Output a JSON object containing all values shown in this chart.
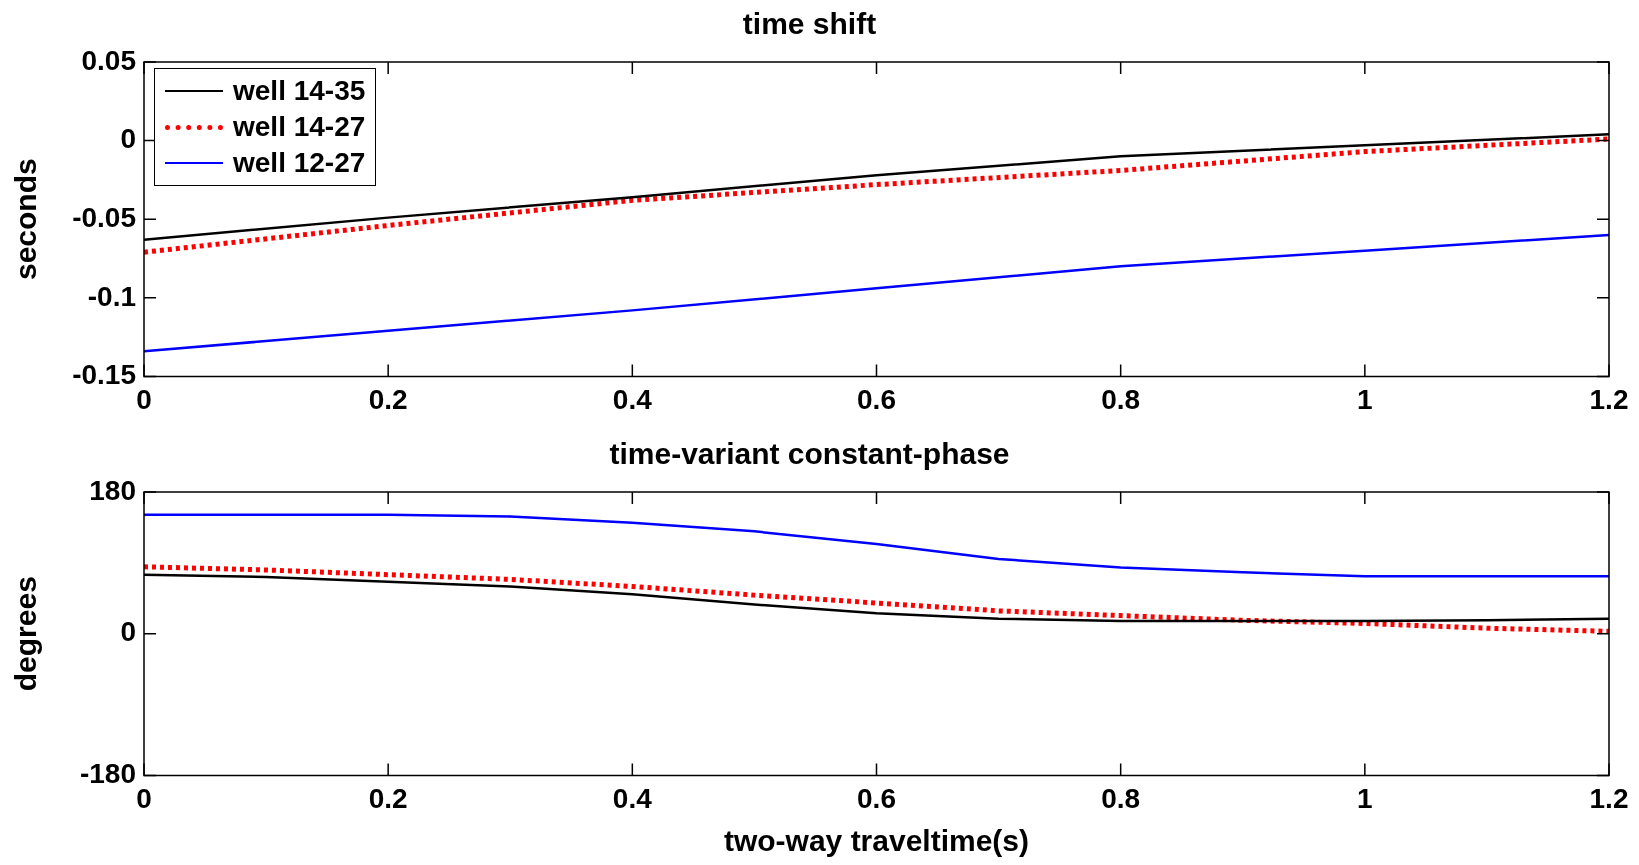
{
  "chart_data": [
    {
      "type": "line",
      "title": "time shift",
      "ylabel": "seconds",
      "x": [
        0,
        0.2,
        0.4,
        0.6,
        0.8,
        1.0,
        1.2
      ],
      "xlim": [
        0,
        1.2
      ],
      "xticks": [
        0,
        0.2,
        0.4,
        0.6,
        0.8,
        1,
        1.2
      ],
      "ylim": [
        -0.15,
        0.05
      ],
      "yticks": [
        -0.15,
        -0.1,
        -0.05,
        0,
        0.05
      ],
      "grid": false,
      "legend": "top left",
      "marker": "none",
      "series": [
        {
          "name": "well 14-35",
          "color": "#000000",
          "line_style": "solid",
          "values": [
            -0.063,
            -0.049,
            -0.036,
            -0.022,
            -0.01,
            -0.003,
            0.004
          ]
        },
        {
          "name": "well 14-27",
          "color": "#ff0000",
          "line_style": "dotted",
          "values": [
            -0.071,
            -0.054,
            -0.038,
            -0.028,
            -0.019,
            -0.007,
            0.001
          ]
        },
        {
          "name": "well 12-27",
          "color": "#0000ff",
          "line_style": "solid",
          "values": [
            -0.134,
            -0.121,
            -0.108,
            -0.094,
            -0.08,
            -0.07,
            -0.06
          ]
        }
      ]
    },
    {
      "type": "line",
      "title": "time-variant constant-phase",
      "xlabel": "two-way traveltime(s)",
      "ylabel": "degrees",
      "x": [
        0,
        0.1,
        0.2,
        0.3,
        0.4,
        0.5,
        0.6,
        0.7,
        0.8,
        0.9,
        1.0,
        1.1,
        1.2
      ],
      "xlim": [
        0,
        1.2
      ],
      "xticks": [
        0,
        0.2,
        0.4,
        0.6,
        0.8,
        1,
        1.2
      ],
      "ylim": [
        -180,
        180
      ],
      "yticks": [
        -180,
        0,
        180
      ],
      "grid": false,
      "legend": false,
      "marker": "none",
      "series": [
        {
          "color": "#000000",
          "line_style": "solid",
          "values": [
            75,
            72,
            66,
            60,
            50,
            37,
            26,
            19,
            16,
            16,
            16,
            17,
            19
          ]
        },
        {
          "color": "#ff0000",
          "line_style": "dotted",
          "values": [
            85,
            81,
            75,
            69,
            60,
            49,
            39,
            29,
            23,
            17,
            13,
            7,
            3
          ]
        },
        {
          "color": "#0000ff",
          "line_style": "solid",
          "values": [
            151,
            151,
            151,
            149,
            141,
            130,
            114,
            95,
            84,
            78,
            73,
            73,
            73
          ]
        }
      ]
    }
  ]
}
